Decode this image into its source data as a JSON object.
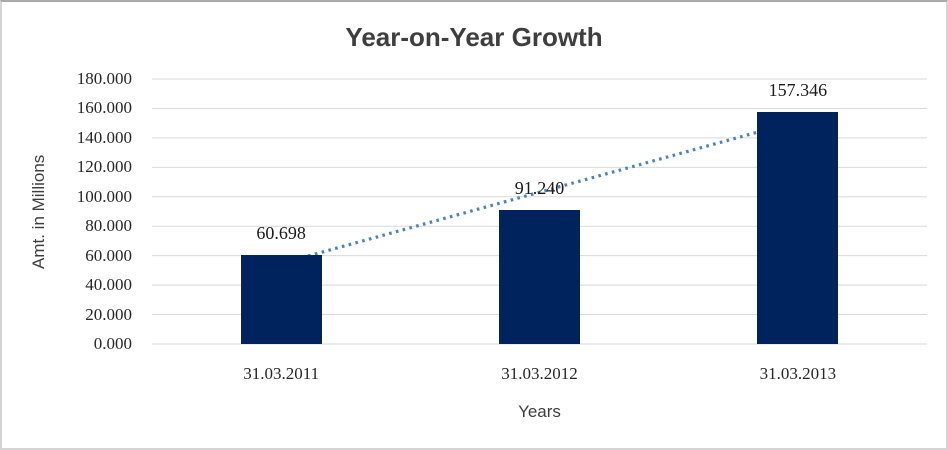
{
  "chart_data": {
    "type": "bar",
    "title": "Year-on-Year Growth",
    "xlabel": "Years",
    "ylabel": "Amt. in Millions",
    "categories": [
      "31.03.2011",
      "31.03.2012",
      "31.03.2013"
    ],
    "values": [
      60.698,
      91.24,
      157.346
    ],
    "value_labels": [
      "60.698",
      "91.240",
      "157.346"
    ],
    "ytick_labels": [
      "0.000",
      "20.000",
      "40.000",
      "60.000",
      "80.000",
      "100.000",
      "120.000",
      "140.000",
      "160.000",
      "180.000"
    ],
    "ylim": [
      0,
      180
    ],
    "grid": "horizontal",
    "legend": "none",
    "trendline": {
      "type": "linear",
      "style": "dotted"
    },
    "colors": {
      "bar": "#00235e",
      "trendline": "#4f81bd",
      "gridline": "#d9d9d9",
      "title_text": "#3f3f3f",
      "tick_text": "#262626",
      "axis_title_text": "#3f3f3f",
      "frame_border": "#d4d4d4"
    }
  }
}
